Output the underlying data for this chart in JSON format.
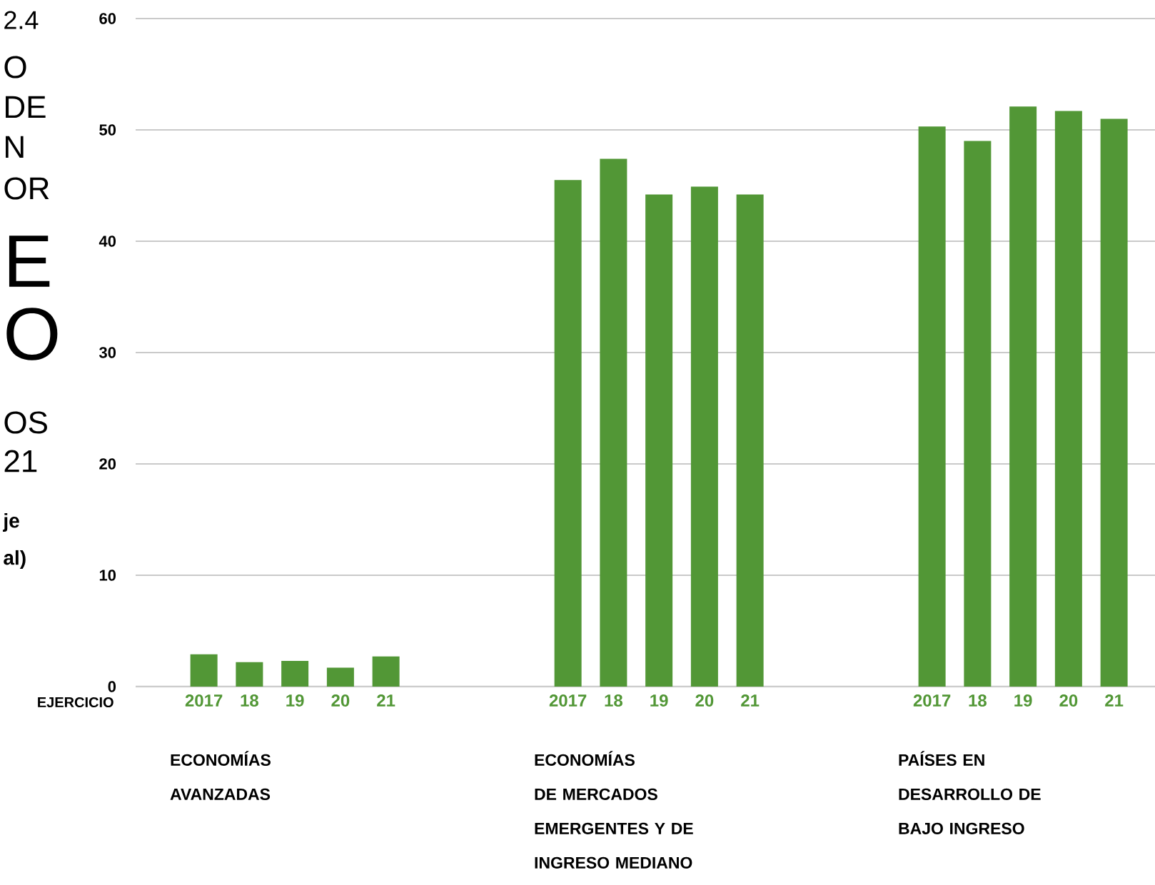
{
  "chart_data": {
    "type": "bar",
    "xlabel": "EJERCICIO",
    "categories": [
      "2017",
      "18",
      "19",
      "20",
      "21",
      null,
      null,
      null,
      "2017",
      "18",
      "19",
      "20",
      "21",
      null,
      null,
      null,
      "2017",
      "18",
      "19",
      "20",
      "21"
    ],
    "series": [
      {
        "color": "#529736",
        "values": [
          2.9,
          2.2,
          2.3,
          1.7,
          2.7,
          null,
          null,
          null,
          45.5,
          47.4,
          44.2,
          44.9,
          44.2,
          null,
          null,
          null,
          50.3,
          49.0,
          52.1,
          51.7,
          51.0
        ]
      }
    ],
    "ylim": [
      0,
      60
    ],
    "yticks": [
      0,
      10,
      20,
      30,
      40,
      50,
      60
    ],
    "grid": "y",
    "annotations": [
      "ECONOMÍAS AVANZADAS",
      "ECONOMÍAS DE MERCADOS EMERGENTES Y DE INGRESO MEDIANO",
      "PAÍSES EN DESARROLLO DE BAJO INGRESO",
      "2.4",
      "O",
      "DE",
      "N",
      "OR",
      "E",
      "O",
      "OS",
      "21",
      "je",
      "al)"
    ]
  }
}
